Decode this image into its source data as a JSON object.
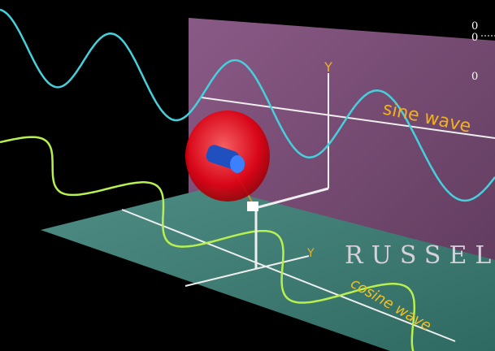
{
  "labels": {
    "sine": "sine wave",
    "cosine": "cosine wave",
    "y_vertical": "Y",
    "y_floor": "Y",
    "watermark": "RUSSEL"
  },
  "corner": [
    "0",
    "0",
    "0"
  ]
}
